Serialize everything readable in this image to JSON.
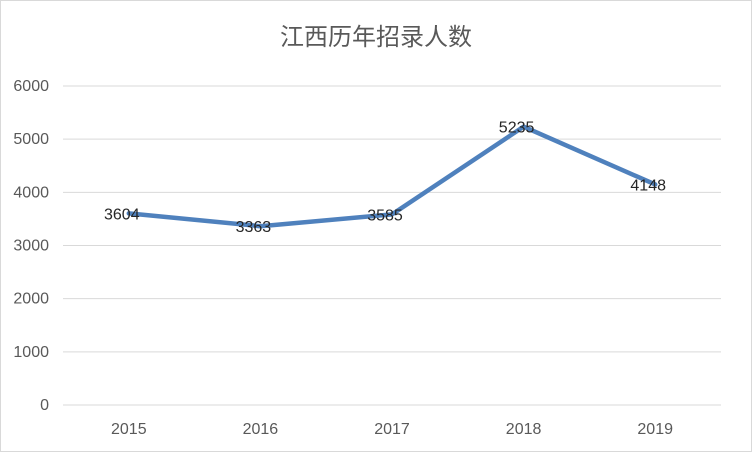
{
  "chart_data": {
    "type": "line",
    "title": "江西历年招录人数",
    "categories": [
      "2015",
      "2016",
      "2017",
      "2018",
      "2019"
    ],
    "series": [
      {
        "values": [
          3604,
          3363,
          3585,
          5235,
          4148
        ]
      }
    ],
    "data_labels": [
      "3604",
      "3363",
      "3585",
      "5235",
      "4148"
    ],
    "y_ticks": [
      "0",
      "1000",
      "2000",
      "3000",
      "4000",
      "5000",
      "6000"
    ],
    "ylim": [
      0,
      6000
    ],
    "xlabel": "",
    "ylabel": "",
    "grid": true,
    "legend": "none",
    "colors": {
      "line": "#4f81bd",
      "grid": "#d9d9d9",
      "text": "#595959"
    }
  }
}
